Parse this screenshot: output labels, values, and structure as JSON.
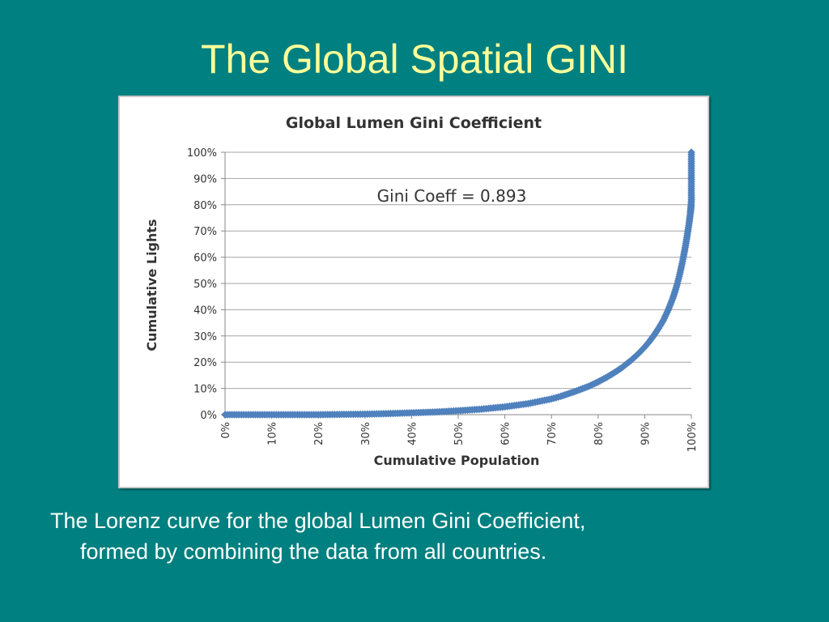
{
  "slide": {
    "title": "The Global Spatial GINI",
    "caption_line1": "The Lorenz curve for the global Lumen Gini Coefficient,",
    "caption_line2": "formed by combining the data from all countries."
  },
  "colors": {
    "background": "#008080",
    "title": "#ffff99",
    "caption": "#ffffff",
    "series": "#4f81bd"
  },
  "chart_data": {
    "type": "scatter",
    "title": "Global Lumen Gini Coefficient",
    "xlabel": "Cumulative Population",
    "ylabel": "Cumulative Lights",
    "annotation": "Gini Coeff = 0.893",
    "xlim": [
      0,
      100
    ],
    "ylim": [
      0,
      100
    ],
    "x_ticks": [
      "0%",
      "10%",
      "20%",
      "30%",
      "40%",
      "50%",
      "60%",
      "70%",
      "80%",
      "90%",
      "100%"
    ],
    "y_ticks": [
      "0%",
      "10%",
      "20%",
      "30%",
      "40%",
      "50%",
      "60%",
      "70%",
      "80%",
      "90%",
      "100%"
    ],
    "grid": "horizontal",
    "legend": "none",
    "marker": "diamond",
    "series": [
      {
        "x": [
          0,
          10,
          20,
          30,
          35,
          40,
          45,
          50,
          55,
          60,
          65,
          70,
          72,
          75,
          78,
          80,
          82,
          84,
          85,
          86,
          87,
          88,
          89,
          90,
          91,
          92,
          93,
          94,
          95,
          96,
          96.5,
          97,
          97.5,
          98,
          98.3,
          98.6,
          98.9,
          99.1,
          99.3,
          99.5,
          99.6,
          99.7,
          99.8,
          99.85,
          99.9,
          99.95,
          100,
          100,
          100
        ],
        "y": [
          0,
          0,
          0,
          0.2,
          0.4,
          0.7,
          1.0,
          1.5,
          2.1,
          3.0,
          4.2,
          6.0,
          7.0,
          8.8,
          10.8,
          12.5,
          14.4,
          16.6,
          17.8,
          19.2,
          20.6,
          22.2,
          23.9,
          25.8,
          27.9,
          30.3,
          33.0,
          36.0,
          39.8,
          44.3,
          47.0,
          50.0,
          53.5,
          57.5,
          60.2,
          63.0,
          66.0,
          68.2,
          70.5,
          72.8,
          74.2,
          75.6,
          77.0,
          78.0,
          79.0,
          80.0,
          82.0,
          87.0,
          100
        ]
      }
    ]
  }
}
